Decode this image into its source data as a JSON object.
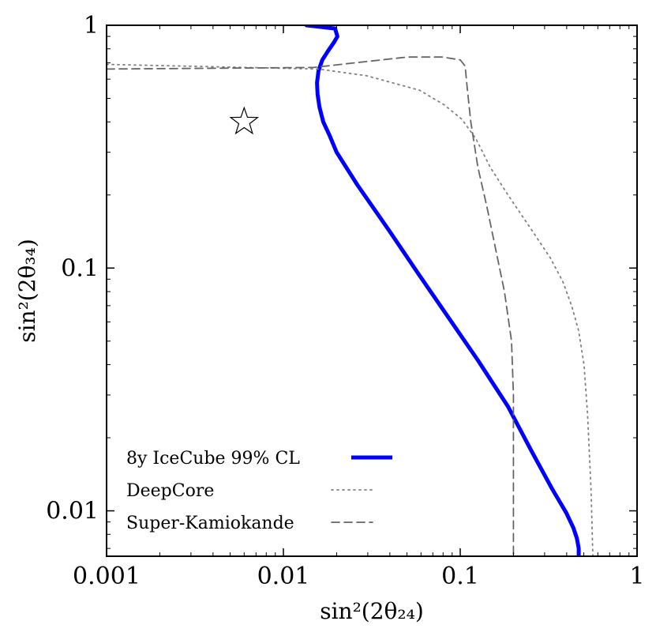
{
  "chart_data": {
    "type": "line",
    "xscale": "log",
    "yscale": "log",
    "xlim": [
      0.001,
      1
    ],
    "ylim": [
      0.0065,
      1
    ],
    "xlabel": "sin²(2θ₂₄)",
    "ylabel": "sin²(2θ₃₄)",
    "x_ticks": [
      {
        "value": 0.001,
        "label": "0.001"
      },
      {
        "value": 0.01,
        "label": "0.01"
      },
      {
        "value": 0.1,
        "label": "0.1"
      },
      {
        "value": 1,
        "label": "1"
      }
    ],
    "y_ticks": [
      {
        "value": 0.01,
        "label": "0.01"
      },
      {
        "value": 0.1,
        "label": "0.1"
      },
      {
        "value": 1,
        "label": "1"
      }
    ],
    "marker": {
      "name": "best-fit",
      "symbol": "star",
      "x": 0.006,
      "y": 0.4
    },
    "series": [
      {
        "name": "8y IceCube 99% CL",
        "color": "#0000ff",
        "style": "solid",
        "x": [
          0.0135,
          0.0196,
          0.0202,
          0.0193,
          0.0178,
          0.0166,
          0.0158,
          0.0155,
          0.0156,
          0.016,
          0.0168,
          0.0183,
          0.02,
          0.0262,
          0.0398,
          0.0575,
          0.0851,
          0.1259,
          0.1862,
          0.2512,
          0.3311,
          0.3981,
          0.4365,
          0.4571,
          0.4677,
          0.4677
        ],
        "y": [
          1.0,
          0.97,
          0.9,
          0.85,
          0.78,
          0.72,
          0.65,
          0.58,
          0.52,
          0.46,
          0.4,
          0.35,
          0.3,
          0.22,
          0.142,
          0.0955,
          0.0631,
          0.0417,
          0.0269,
          0.0178,
          0.0123,
          0.0098,
          0.0085,
          0.0077,
          0.007,
          0.0065
        ]
      },
      {
        "name": "DeepCore",
        "color": "#808080",
        "style": "dotted",
        "x": [
          0.001,
          0.0158,
          0.0295,
          0.0589,
          0.0813,
          0.1023,
          0.123,
          0.1479,
          0.1862,
          0.2512,
          0.3236,
          0.3802,
          0.4266,
          0.4677,
          0.5012,
          0.5248,
          0.5495,
          0.5623
        ],
        "y": [
          0.69,
          0.66,
          0.62,
          0.54,
          0.47,
          0.41,
          0.34,
          0.26,
          0.2,
          0.145,
          0.11,
          0.088,
          0.07,
          0.055,
          0.04,
          0.025,
          0.012,
          0.0065
        ]
      },
      {
        "name": "Super-Kamiokande",
        "color": "#666666",
        "style": "dashed",
        "x": [
          0.001,
          0.0148,
          0.0251,
          0.0501,
          0.0794,
          0.1,
          0.1066,
          0.1096,
          0.1148,
          0.1259,
          0.1413,
          0.1585,
          0.1778,
          0.195,
          0.2,
          0.2,
          0.2
        ],
        "y": [
          0.66,
          0.67,
          0.7,
          0.74,
          0.74,
          0.72,
          0.68,
          0.55,
          0.4,
          0.26,
          0.18,
          0.12,
          0.08,
          0.05,
          0.03,
          0.01,
          0.0065
        ]
      }
    ],
    "legend": {
      "position": "lower-left",
      "entries": [
        {
          "label": "8y IceCube 99% CL",
          "style": "solid",
          "color": "#0000ff"
        },
        {
          "label": "DeepCore",
          "style": "dotted",
          "color": "#808080"
        },
        {
          "label": "Super-Kamiokande",
          "style": "dashed",
          "color": "#666666"
        }
      ]
    }
  }
}
